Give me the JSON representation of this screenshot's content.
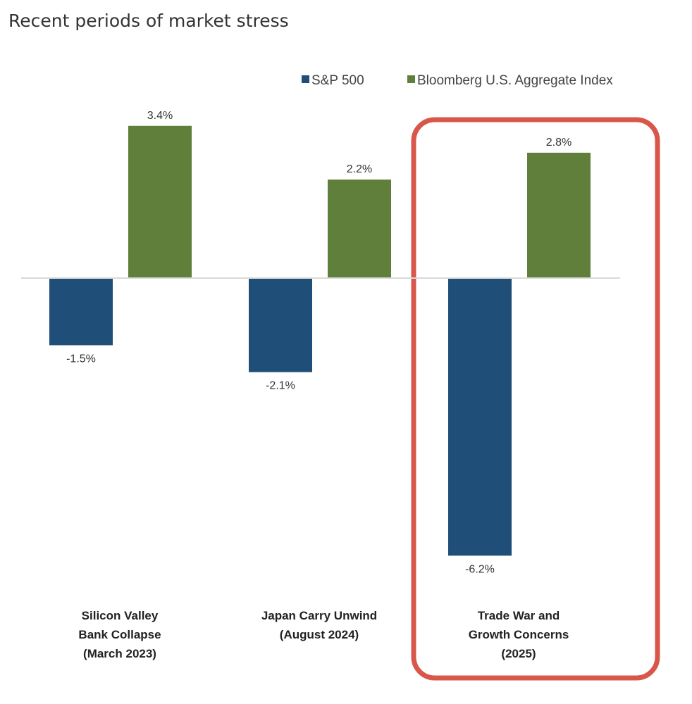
{
  "chart_data": {
    "type": "bar",
    "title": "Recent periods of market stress",
    "categories": [
      [
        "Silicon Valley",
        "Bank Collapse",
        "(March 2023)"
      ],
      [
        "Japan Carry Unwind",
        "(August 2024)"
      ],
      [
        "Trade War and",
        "Growth Concerns",
        "(2025)"
      ]
    ],
    "series": [
      {
        "name": "S&P 500",
        "color": "#1f4e79",
        "values": [
          -1.5,
          -2.1,
          -6.2
        ],
        "labels": [
          "-1.5%",
          "-2.1%",
          "-6.2%"
        ]
      },
      {
        "name": "Bloomberg U.S. Aggregate Index",
        "color": "#5f7f3a",
        "values": [
          3.4,
          2.2,
          2.8
        ],
        "labels": [
          "3.4%",
          "2.2%",
          "2.8%"
        ]
      }
    ],
    "xlabel": "",
    "ylabel": "",
    "ylim": [
      -6.2,
      3.4
    ],
    "grid": false,
    "legend": "top-right",
    "highlight": {
      "category_index": 2,
      "color": "#d9574a"
    }
  }
}
